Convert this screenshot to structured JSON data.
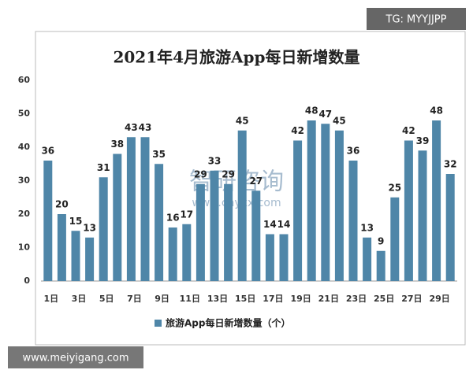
{
  "chart_data": {
    "type": "bar",
    "title": "2021年4月旅游App每日新增数量",
    "categories": [
      "1日",
      null,
      "3日",
      null,
      "5日",
      null,
      "7日",
      null,
      "9日",
      null,
      "11日",
      null,
      "13日",
      null,
      "15日",
      null,
      "17日",
      null,
      "19日",
      null,
      "21日",
      null,
      "23日",
      null,
      "25日",
      null,
      "27日",
      null,
      "29日",
      null
    ],
    "series": [
      {
        "name": "旅游App每日新增数量（个）",
        "color": "#4f86a8",
        "values": [
          36,
          20,
          15,
          13,
          31,
          38,
          43,
          43,
          35,
          16,
          17,
          29,
          33,
          29,
          45,
          27,
          14,
          14,
          42,
          48,
          47,
          45,
          36,
          13,
          9,
          25,
          42,
          39,
          48,
          32
        ]
      }
    ],
    "ylim": [
      0,
      60
    ],
    "yticks": [
      0,
      10,
      20,
      30,
      40,
      50,
      60
    ],
    "grid": false,
    "annotations": [
      "TG: MYYJJPP",
      "智研咨询",
      "www.chyxx.com",
      "www.meiyigang.com"
    ]
  }
}
